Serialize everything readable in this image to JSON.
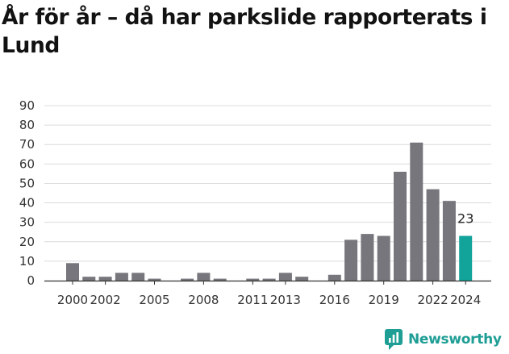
{
  "header": {
    "title": "År för år – då har parkslide rapporterats i Lund"
  },
  "brand": {
    "name": "Newsworthy",
    "color": "#1e9e95",
    "logo_icon": "bar-chart-pin-icon"
  },
  "colors": {
    "bar": "#76767c",
    "highlight": "#12a39a",
    "grid": "#dcdcdc",
    "axis": "#333333"
  },
  "chart_data": {
    "type": "bar",
    "title": "År för år – då har parkslide rapporterats i Lund",
    "xlabel": "",
    "ylabel": "",
    "ylim": [
      0,
      90
    ],
    "yticks": [
      0,
      10,
      20,
      30,
      40,
      50,
      60,
      70,
      80,
      90
    ],
    "grid": true,
    "categories": [
      "2000",
      "2001",
      "2002",
      "2003",
      "2004",
      "2005",
      "2006",
      "2007",
      "2008",
      "2009",
      "2010",
      "2011",
      "2012",
      "2013",
      "2014",
      "2015",
      "2016",
      "2017",
      "2018",
      "2019",
      "2020",
      "2021",
      "2022",
      "2023",
      "2024"
    ],
    "values": [
      9,
      2,
      2,
      4,
      4,
      1,
      0,
      1,
      4,
      1,
      0,
      1,
      1,
      4,
      2,
      0,
      3,
      21,
      24,
      23,
      56,
      71,
      47,
      41,
      23
    ],
    "xtick_labels": [
      "2000",
      "2002",
      "2005",
      "2008",
      "2011",
      "2013",
      "2016",
      "2019",
      "2022",
      "2024"
    ],
    "highlight_category": "2024",
    "data_labels": [
      {
        "category": "2024",
        "text": "23"
      }
    ]
  }
}
